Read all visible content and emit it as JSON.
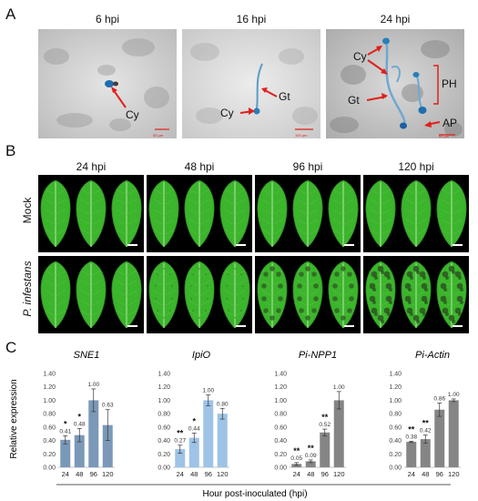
{
  "panels": {
    "A": {
      "letter": "A",
      "images": [
        {
          "time": "6 hpi",
          "labels": [
            "Cy"
          ],
          "scale_text": "50 μm"
        },
        {
          "time": "16 hpi",
          "labels": [
            "Gt",
            "Cy"
          ],
          "scale_text": "100 μm"
        },
        {
          "time": "24 hpi",
          "labels": [
            "Cy",
            "PH",
            "Gt",
            "AP"
          ],
          "scale_text": "50 μm"
        }
      ]
    },
    "B": {
      "letter": "B",
      "columns": [
        "24 hpi",
        "48 hpi",
        "96 hpi",
        "120 hpi"
      ],
      "rows": [
        "Mock",
        "P. infestans"
      ]
    },
    "C": {
      "letter": "C",
      "ylabel": "Relative expression",
      "xlabel": "Hour post-inoculated (hpi)"
    }
  },
  "colors": {
    "leaf_green": "#3bb52c",
    "lesion_dark": "#2f5a22",
    "bar_blue_dark": "#7b98b8",
    "bar_blue_light": "#9ec3e6",
    "bar_gray": "#858585",
    "arrow_red": "#e0201b",
    "stain_blue": "#2a7fb8"
  },
  "chart_data": [
    {
      "type": "bar",
      "title": "SNE1",
      "categories": [
        "24",
        "48",
        "96",
        "120"
      ],
      "values": [
        0.41,
        0.48,
        1.0,
        0.63
      ],
      "value_labels": [
        "0.41",
        "0.48",
        "1.00",
        "0.63"
      ],
      "errors": [
        0.06,
        0.1,
        0.17,
        0.23
      ],
      "significance": [
        "*",
        "*",
        "",
        ""
      ],
      "ylim": [
        0,
        1.4
      ],
      "yticks": [
        "0.00",
        "0.20",
        "0.40",
        "0.60",
        "0.80",
        "1.00",
        "1.20",
        "1.40"
      ],
      "color": "#7b98b8",
      "ylabel": "Relative expression"
    },
    {
      "type": "bar",
      "title": "IpiO",
      "categories": [
        "24",
        "48",
        "96",
        "120"
      ],
      "values": [
        0.27,
        0.44,
        1.0,
        0.8
      ],
      "value_labels": [
        "0.27",
        "0.44",
        "1.00",
        "0.80"
      ],
      "errors": [
        0.06,
        0.07,
        0.08,
        0.08
      ],
      "significance": [
        "**",
        "*",
        "",
        ""
      ],
      "ylim": [
        0,
        1.4
      ],
      "yticks": [
        "0.00",
        "0.20",
        "0.40",
        "0.60",
        "0.80",
        "1.00",
        "1.20",
        "1.40"
      ],
      "color": "#9ec3e6"
    },
    {
      "type": "bar",
      "title": "Pi-NPP1",
      "categories": [
        "24",
        "48",
        "96",
        "120"
      ],
      "values": [
        0.05,
        0.09,
        0.52,
        1.0
      ],
      "value_labels": [
        "0.05",
        "0.09",
        "0.52",
        "1.00"
      ],
      "errors": [
        0.02,
        0.02,
        0.05,
        0.13
      ],
      "significance": [
        "**",
        "**",
        "**",
        ""
      ],
      "ylim": [
        0,
        1.4
      ],
      "yticks": [
        "0.00",
        "0.20",
        "0.40",
        "0.60",
        "0.80",
        "1.00",
        "1.20",
        "1.40"
      ],
      "color": "#858585"
    },
    {
      "type": "bar",
      "title": "Pi-Actin",
      "categories": [
        "24",
        "48",
        "96",
        "120"
      ],
      "values": [
        0.38,
        0.42,
        0.86,
        1.0
      ],
      "value_labels": [
        "0.38",
        "0.42",
        "0.86",
        "1.00"
      ],
      "errors": [
        0.01,
        0.06,
        0.1,
        0.02
      ],
      "significance": [
        "**",
        "**",
        "",
        ""
      ],
      "ylim": [
        0,
        1.4
      ],
      "yticks": [
        "0.00",
        "0.20",
        "0.40",
        "0.60",
        "0.80",
        "1.00",
        "1.20",
        "1.40"
      ],
      "color": "#858585"
    }
  ]
}
